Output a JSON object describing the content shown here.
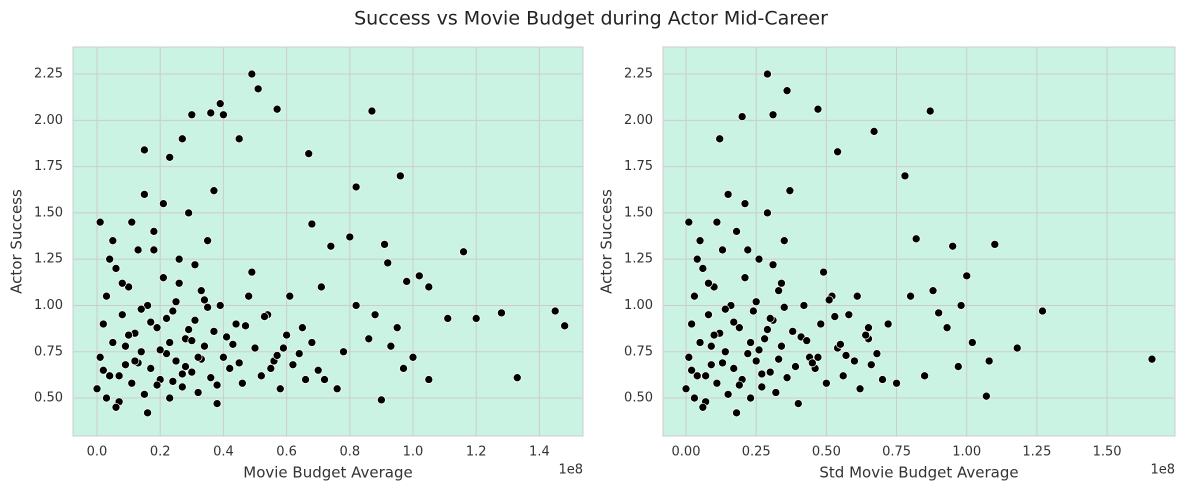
{
  "title": "Success vs Movie Budget during Actor Mid-Career",
  "chart_data": [
    {
      "type": "scatter",
      "xlabel": "Movie Budget Average",
      "ylabel": "Actor Success",
      "x_offset_label": "1e8",
      "color": "#000000",
      "edgecolor": "#ffffff",
      "background": "#cbf3e3",
      "grid": true,
      "xlim": [
        -0.076,
        1.538
      ],
      "ylim": [
        0.295,
        2.396
      ],
      "xticks": [
        {
          "value": 0,
          "label": "0.0"
        },
        {
          "value": 0.2,
          "label": "0.2"
        },
        {
          "value": 0.4,
          "label": "0.4"
        },
        {
          "value": 0.6,
          "label": "0.6"
        },
        {
          "value": 0.8,
          "label": "0.8"
        },
        {
          "value": 1,
          "label": "1.0"
        },
        {
          "value": 1.2,
          "label": "1.2"
        },
        {
          "value": 1.4,
          "label": "1.4"
        }
      ],
      "yticks": [
        {
          "value": 0.5,
          "label": "0.50"
        },
        {
          "value": 0.75,
          "label": "0.75"
        },
        {
          "value": 1,
          "label": "1.00"
        },
        {
          "value": 1.25,
          "label": "1.25"
        },
        {
          "value": 1.5,
          "label": "1.50"
        },
        {
          "value": 1.75,
          "label": "1.75"
        },
        {
          "value": 2,
          "label": "2.00"
        },
        {
          "value": 2.25,
          "label": "2.25"
        }
      ],
      "x": [
        0.49,
        0.51,
        0.39,
        0.87,
        0.4,
        0.3,
        0.57,
        0.36,
        0.96,
        1.45,
        1.48,
        1.33,
        1.28,
        1.2,
        1.16,
        1.11,
        1.05,
        1.05,
        1.02,
        0.98,
        0.95,
        0.9,
        0.92,
        0.91,
        0.82,
        0.67,
        0.8,
        0.45,
        0.27,
        0.15,
        0.23,
        0.68,
        0.74,
        0.88,
        0.93,
        0.97,
        1.0,
        0.86,
        0.76,
        0.82,
        0.71,
        0.0,
        0.01,
        0.02,
        0.03,
        0.04,
        0.05,
        0.06,
        0.07,
        0.08,
        0.09,
        0.1,
        0.11,
        0.12,
        0.13,
        0.14,
        0.15,
        0.16,
        0.17,
        0.18,
        0.19,
        0.2,
        0.21,
        0.22,
        0.23,
        0.24,
        0.25,
        0.26,
        0.27,
        0.28,
        0.29,
        0.3,
        0.31,
        0.32,
        0.33,
        0.34,
        0.35,
        0.36,
        0.37,
        0.38,
        0.39,
        0.4,
        0.42,
        0.44,
        0.46,
        0.48,
        0.5,
        0.52,
        0.54,
        0.56,
        0.58,
        0.6,
        0.62,
        0.64,
        0.66,
        0.68,
        0.7,
        0.01,
        0.03,
        0.05,
        0.07,
        0.09,
        0.11,
        0.13,
        0.15,
        0.17,
        0.19,
        0.21,
        0.23,
        0.25,
        0.27,
        0.29,
        0.31,
        0.33,
        0.35,
        0.37,
        0.41,
        0.45,
        0.49,
        0.53,
        0.57,
        0.61,
        0.65,
        0.72,
        0.78,
        0.02,
        0.04,
        0.06,
        0.08,
        0.1,
        0.12,
        0.14,
        0.16,
        0.18,
        0.2,
        0.22,
        0.24,
        0.26,
        0.28,
        0.3,
        0.32,
        0.34,
        0.38,
        0.43,
        0.47,
        0.55,
        0.59
      ],
      "y": [
        2.25,
        2.17,
        2.09,
        2.05,
        2.03,
        2.03,
        2.06,
        2.04,
        1.7,
        0.97,
        0.89,
        0.61,
        0.96,
        0.93,
        1.29,
        0.93,
        0.6,
        1.1,
        1.16,
        1.13,
        0.88,
        0.49,
        1.23,
        1.33,
        1.64,
        1.82,
        1.37,
        1.9,
        1.9,
        1.84,
        1.8,
        1.44,
        1.32,
        0.95,
        0.78,
        0.66,
        0.72,
        0.82,
        0.55,
        1.0,
        1.1,
        0.55,
        0.72,
        0.9,
        1.05,
        0.62,
        0.8,
        1.2,
        0.48,
        0.95,
        0.68,
        1.1,
        0.58,
        0.85,
        1.3,
        0.75,
        0.52,
        1.0,
        0.66,
        1.4,
        0.88,
        0.6,
        1.15,
        0.74,
        0.5,
        0.97,
        0.7,
        1.25,
        0.56,
        0.82,
        1.5,
        0.64,
        0.92,
        0.53,
        1.08,
        0.78,
        1.35,
        0.61,
        0.86,
        0.47,
        1.0,
        0.72,
        0.66,
        0.9,
        0.58,
        1.05,
        0.77,
        0.62,
        0.95,
        0.7,
        0.55,
        0.84,
        0.68,
        0.74,
        0.6,
        0.8,
        0.65,
        1.45,
        0.5,
        1.35,
        0.62,
        0.78,
        1.45,
        0.69,
        1.6,
        0.91,
        0.57,
        1.55,
        0.8,
        1.02,
        0.63,
        0.87,
        1.22,
        0.71,
        0.99,
        1.62,
        0.83,
        0.69,
        1.18,
        0.94,
        0.73,
        1.05,
        0.88,
        0.6,
        0.75,
        0.65,
        1.25,
        0.45,
        1.12,
        0.84,
        0.7,
        0.98,
        0.42,
        1.3,
        0.76,
        0.93,
        0.59,
        1.12,
        0.67,
        0.81,
        0.72,
        1.03,
        0.57,
        0.79,
        0.89,
        0.66,
        0.77
      ]
    },
    {
      "type": "scatter",
      "xlabel": "Std Movie Budget Average",
      "ylabel": "Actor Success",
      "x_offset_label": "1e8",
      "color": "#000000",
      "edgecolor": "#ffffff",
      "background": "#cbf3e3",
      "grid": true,
      "xlim": [
        -0.082,
        1.742
      ],
      "ylim": [
        0.295,
        2.396
      ],
      "xticks": [
        {
          "value": 0,
          "label": "0.00"
        },
        {
          "value": 0.25,
          "label": "0.25"
        },
        {
          "value": 0.5,
          "label": "0.50"
        },
        {
          "value": 0.75,
          "label": "0.75"
        },
        {
          "value": 1,
          "label": "1.00"
        },
        {
          "value": 1.25,
          "label": "1.25"
        },
        {
          "value": 1.5,
          "label": "1.50"
        }
      ],
      "yticks": [
        {
          "value": 0.5,
          "label": "0.50"
        },
        {
          "value": 0.75,
          "label": "0.75"
        },
        {
          "value": 1,
          "label": "1.00"
        },
        {
          "value": 1.25,
          "label": "1.25"
        },
        {
          "value": 1.5,
          "label": "1.50"
        },
        {
          "value": 1.75,
          "label": "1.75"
        },
        {
          "value": 2,
          "label": "2.00"
        },
        {
          "value": 2.25,
          "label": "2.25"
        }
      ],
      "x": [
        0.29,
        0.36,
        0.87,
        0.47,
        0.2,
        0.31,
        1.66,
        1.27,
        1.18,
        1.1,
        1.07,
        1.08,
        1.0,
        0.97,
        0.95,
        0.78,
        0.67,
        0.54,
        0.12,
        0.82,
        0.9,
        0.85,
        0.93,
        0.98,
        1.02,
        0.88,
        0.75,
        0.72,
        0.8,
        0.65,
        0.0,
        0.01,
        0.02,
        0.03,
        0.04,
        0.05,
        0.06,
        0.07,
        0.08,
        0.09,
        0.1,
        0.11,
        0.12,
        0.13,
        0.14,
        0.15,
        0.16,
        0.17,
        0.18,
        0.19,
        0.2,
        0.21,
        0.22,
        0.23,
        0.24,
        0.25,
        0.26,
        0.27,
        0.28,
        0.29,
        0.3,
        0.31,
        0.32,
        0.33,
        0.34,
        0.35,
        0.36,
        0.38,
        0.4,
        0.42,
        0.44,
        0.46,
        0.48,
        0.5,
        0.52,
        0.54,
        0.56,
        0.58,
        0.6,
        0.62,
        0.64,
        0.66,
        0.68,
        0.7,
        0.01,
        0.03,
        0.05,
        0.07,
        0.09,
        0.11,
        0.13,
        0.15,
        0.17,
        0.19,
        0.21,
        0.23,
        0.25,
        0.27,
        0.29,
        0.31,
        0.33,
        0.35,
        0.37,
        0.41,
        0.45,
        0.49,
        0.53,
        0.57,
        0.61,
        0.65,
        0.02,
        0.04,
        0.06,
        0.08,
        0.1,
        0.14,
        0.18,
        0.22,
        0.26,
        0.3,
        0.34,
        0.39,
        0.43,
        0.47,
        0.51,
        0.55
      ],
      "y": [
        2.25,
        2.16,
        2.05,
        2.06,
        2.02,
        2.03,
        0.71,
        0.97,
        0.77,
        1.33,
        0.51,
        0.7,
        1.16,
        0.67,
        1.32,
        1.7,
        1.94,
        1.83,
        1.9,
        1.36,
        0.96,
        0.62,
        0.88,
        1.0,
        0.8,
        1.08,
        0.58,
        0.9,
        1.05,
        0.82,
        0.55,
        0.72,
        0.9,
        1.05,
        0.62,
        0.8,
        1.2,
        0.48,
        0.95,
        0.68,
        1.1,
        0.58,
        0.85,
        1.3,
        0.75,
        0.52,
        1.0,
        0.66,
        1.4,
        0.88,
        0.6,
        1.15,
        0.74,
        0.5,
        0.97,
        0.7,
        1.25,
        0.56,
        0.82,
        1.5,
        0.64,
        0.92,
        0.53,
        1.08,
        0.78,
        1.35,
        0.61,
        0.86,
        0.47,
        1.0,
        0.72,
        0.66,
        0.9,
        0.58,
        1.05,
        0.77,
        0.62,
        0.95,
        0.7,
        0.55,
        0.84,
        0.68,
        0.74,
        0.6,
        1.45,
        0.5,
        1.35,
        0.62,
        0.78,
        1.45,
        0.69,
        1.6,
        0.91,
        0.57,
        1.55,
        0.8,
        1.02,
        0.63,
        0.87,
        1.22,
        0.71,
        0.99,
        1.62,
        0.83,
        0.69,
        1.18,
        0.94,
        0.73,
        1.05,
        0.88,
        0.65,
        1.25,
        0.45,
        1.12,
        0.84,
        0.98,
        0.42,
        1.3,
        0.76,
        0.93,
        1.12,
        0.67,
        0.81,
        0.72,
        1.03,
        0.79
      ]
    }
  ]
}
